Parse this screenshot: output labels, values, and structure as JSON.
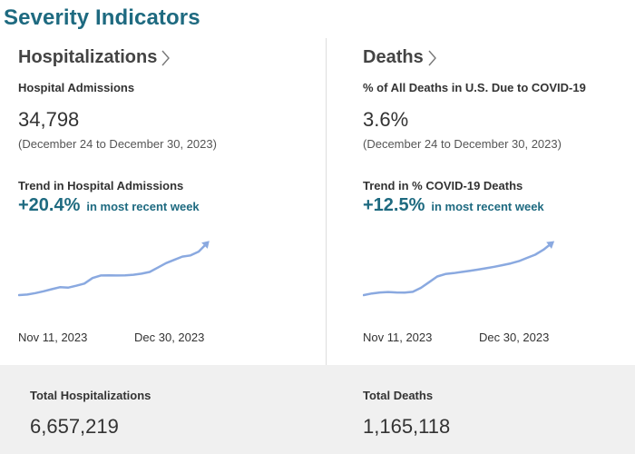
{
  "page": {
    "title": "Severity Indicators"
  },
  "colors": {
    "accent": "#1e6a80",
    "sparkline": "#8aa9e0",
    "footer_bg": "#f0f0f0"
  },
  "hospitalizations": {
    "heading": "Hospitalizations",
    "metric_label": "Hospital Admissions",
    "metric_value": "34,798",
    "date_range": "(December 24 to December 30, 2023)",
    "trend_label": "Trend in Hospital Admissions",
    "trend_pct": "+20.4%",
    "trend_desc": "in most recent week",
    "axis_start": "Nov 11, 2023",
    "axis_end": "Dec 30, 2023",
    "spark_values": [
      0,
      0.5,
      1.8,
      3.5,
      5.4,
      7.2,
      6.8,
      8.5,
      10.5,
      15.5,
      17.8,
      18,
      17.8,
      18,
      18.5,
      19.5,
      21,
      25,
      29,
      32,
      35,
      36,
      39.5,
      47
    ]
  },
  "deaths": {
    "heading": "Deaths",
    "metric_label": "% of All Deaths in U.S. Due to COVID-19",
    "metric_value": "3.6%",
    "date_range": "(December 24 to December 30, 2023)",
    "trend_label": "Trend in % COVID-19 Deaths",
    "trend_pct": "+12.5%",
    "trend_desc": "in most recent week",
    "axis_start": "Nov 11, 2023",
    "axis_end": "Dec 30, 2023",
    "spark_values": [
      0,
      1,
      1.6,
      1.9,
      1.6,
      1.5,
      2,
      4.5,
      8,
      11.5,
      13,
      13.6,
      14.3,
      15,
      15.8,
      16.6,
      17.5,
      18.5,
      19.6,
      21,
      23,
      25,
      28,
      32
    ]
  },
  "footer": {
    "total_hosp_label": "Total Hospitalizations",
    "total_hosp_value": "6,657,219",
    "total_deaths_label": "Total Deaths",
    "total_deaths_value": "1,165,118"
  }
}
